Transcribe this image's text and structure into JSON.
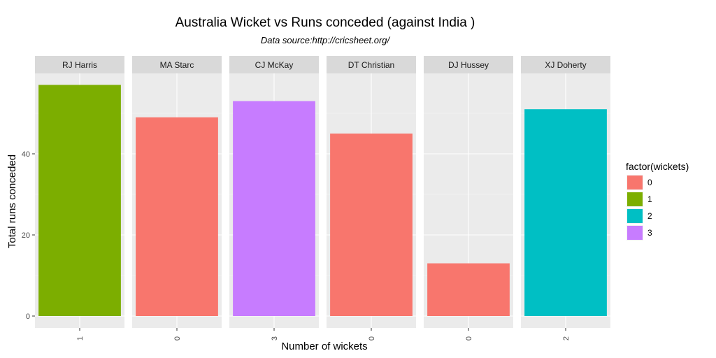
{
  "chart_data": {
    "type": "bar",
    "title": "Australia Wicket vs Runs conceded (against India )",
    "subtitle": "Data source:http://cricsheet.org/",
    "xlabel": "Number of wickets",
    "ylabel": "Total runs conceded",
    "ylim": [
      0,
      57
    ],
    "yticks": [
      0,
      20,
      40
    ],
    "grid": true,
    "legend": {
      "title": "factor(wickets)",
      "placement": "right",
      "entries": [
        {
          "label": "0",
          "color": "#F8766D"
        },
        {
          "label": "1",
          "color": "#7CAE00"
        },
        {
          "label": "2",
          "color": "#00BFC4"
        },
        {
          "label": "3",
          "color": "#C77CFF"
        }
      ]
    },
    "facets": [
      {
        "bowler": "RJ Harris",
        "wickets": "1",
        "runs": 57
      },
      {
        "bowler": "MA Starc",
        "wickets": "0",
        "runs": 49
      },
      {
        "bowler": "CJ McKay",
        "wickets": "3",
        "runs": 53
      },
      {
        "bowler": "DT Christian",
        "wickets": "0",
        "runs": 45
      },
      {
        "bowler": "DJ Hussey",
        "wickets": "0",
        "runs": 13
      },
      {
        "bowler": "XJ Doherty",
        "wickets": "2",
        "runs": 51
      }
    ]
  }
}
